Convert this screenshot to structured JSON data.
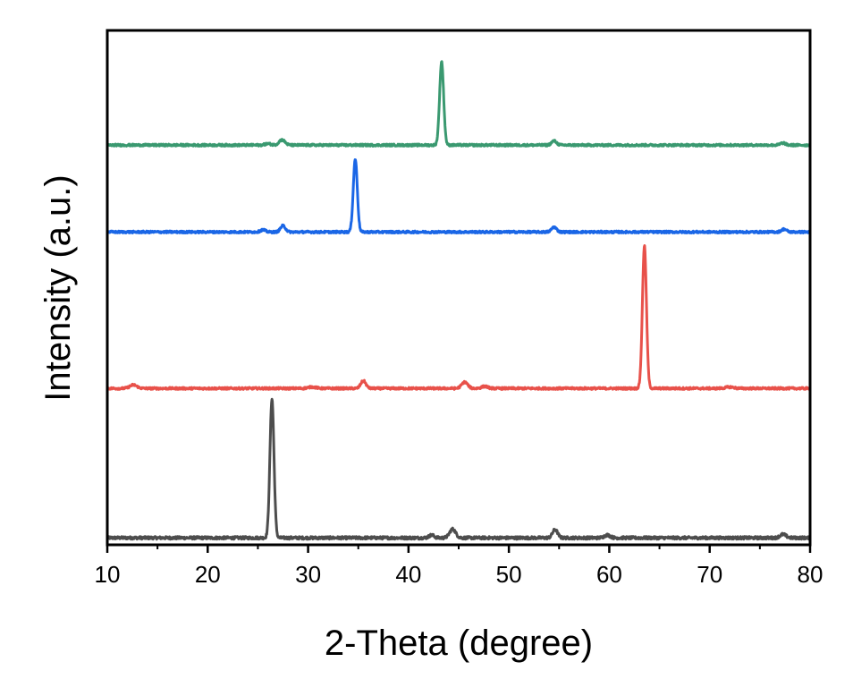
{
  "chart_data": {
    "type": "line",
    "xlabel": "2-Theta (degree)",
    "ylabel": "Intensity (a.u.)",
    "xlim": [
      10,
      80
    ],
    "x_ticks": [
      "10",
      "20",
      "30",
      "40",
      "50",
      "60",
      "70",
      "80"
    ],
    "y_ticks_shown": false,
    "grid": false,
    "legend": "none",
    "series": [
      {
        "color": "#4d4d4d",
        "offset": 0.0,
        "baseline_noise": 0.004,
        "peaks": [
          {
            "x": 26.4,
            "h": 0.4,
            "w": 0.2
          },
          {
            "x": 42.3,
            "h": 0.008,
            "w": 0.25
          },
          {
            "x": 44.4,
            "h": 0.025,
            "w": 0.3
          },
          {
            "x": 54.6,
            "h": 0.024,
            "w": 0.25
          },
          {
            "x": 59.8,
            "h": 0.008,
            "w": 0.3
          },
          {
            "x": 77.3,
            "h": 0.01,
            "w": 0.3
          }
        ]
      },
      {
        "color": "#e8514a",
        "offset": 0.43,
        "baseline_noise": 0.003,
        "peaks": [
          {
            "x": 12.6,
            "h": 0.01,
            "w": 0.35
          },
          {
            "x": 30.4,
            "h": 0.004,
            "w": 0.4
          },
          {
            "x": 35.5,
            "h": 0.022,
            "w": 0.25
          },
          {
            "x": 45.6,
            "h": 0.018,
            "w": 0.3
          },
          {
            "x": 47.6,
            "h": 0.006,
            "w": 0.3
          },
          {
            "x": 63.5,
            "h": 0.41,
            "w": 0.2
          },
          {
            "x": 72.0,
            "h": 0.004,
            "w": 0.4
          }
        ]
      },
      {
        "color": "#1a66e6",
        "offset": 0.88,
        "baseline_noise": 0.003,
        "peaks": [
          {
            "x": 25.5,
            "h": 0.006,
            "w": 0.25
          },
          {
            "x": 27.5,
            "h": 0.018,
            "w": 0.25
          },
          {
            "x": 34.7,
            "h": 0.21,
            "w": 0.2
          },
          {
            "x": 54.5,
            "h": 0.014,
            "w": 0.25
          },
          {
            "x": 77.4,
            "h": 0.008,
            "w": 0.25
          }
        ]
      },
      {
        "color": "#3a9970",
        "offset": 1.13,
        "baseline_noise": 0.003,
        "peaks": [
          {
            "x": 27.4,
            "h": 0.015,
            "w": 0.3
          },
          {
            "x": 26.0,
            "h": 0.004,
            "w": 0.3
          },
          {
            "x": 43.3,
            "h": 0.24,
            "w": 0.2
          },
          {
            "x": 54.5,
            "h": 0.012,
            "w": 0.25
          },
          {
            "x": 77.3,
            "h": 0.006,
            "w": 0.25
          }
        ]
      }
    ],
    "ylim": [
      -0.02,
      1.46
    ]
  }
}
